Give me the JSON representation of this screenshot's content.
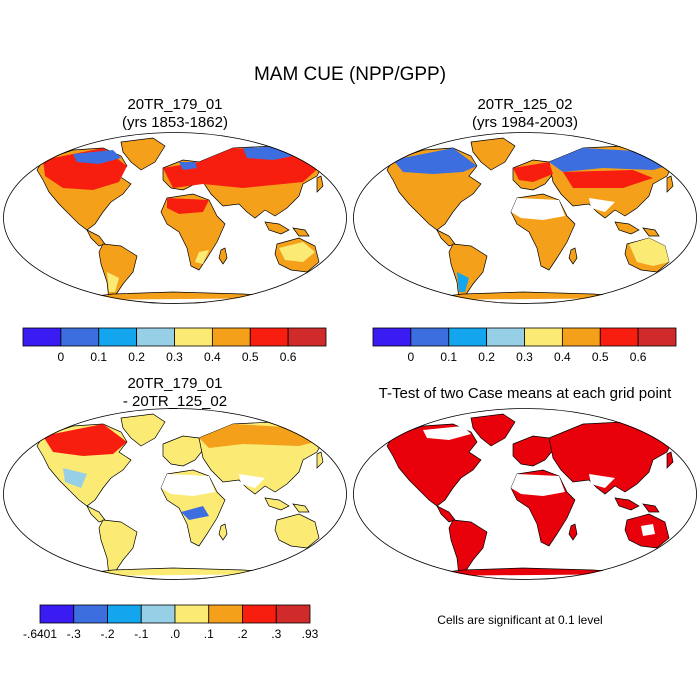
{
  "figure": {
    "title": "MAM CUE (NPP/GPP)",
    "footnote": "Cells are significant at 0.1 level"
  },
  "panels": [
    {
      "id": "case1",
      "title_line1": "20TR_179_01",
      "title_line2": "(yrs 1853-1862)"
    },
    {
      "id": "case2",
      "title_line1": "20TR_125_02",
      "title_line2": "(yrs 1984-2003)"
    },
    {
      "id": "diff",
      "title_line1": "20TR_179_01",
      "title_line2": "- 20TR_125_02"
    },
    {
      "id": "ttest",
      "title_line1": "T-Test of two Case means at each grid point",
      "title_line2": ""
    }
  ],
  "colorbars": {
    "cue": {
      "colors": [
        "#3a1cf2",
        "#3d6ee0",
        "#13a5ee",
        "#97cfe6",
        "#fbeb75",
        "#f5a01a",
        "#f71e10",
        "#d12a2a"
      ],
      "labels": [
        "0",
        "0.1",
        "0.2",
        "0.3",
        "0.4",
        "0.5",
        "0.6"
      ]
    },
    "diff": {
      "colors": [
        "#3a1cf2",
        "#3d6ee0",
        "#13a5ee",
        "#97cfe6",
        "#fbeb75",
        "#f5a01a",
        "#f71e10",
        "#d12a2a"
      ],
      "labels": [
        "-.6401",
        "-.3",
        "-.2",
        "-.1",
        ".0",
        ".1",
        ".2",
        ".3",
        ".93"
      ]
    }
  },
  "colors": {
    "significant": "#e8000b",
    "land_none": "#ffffff"
  }
}
